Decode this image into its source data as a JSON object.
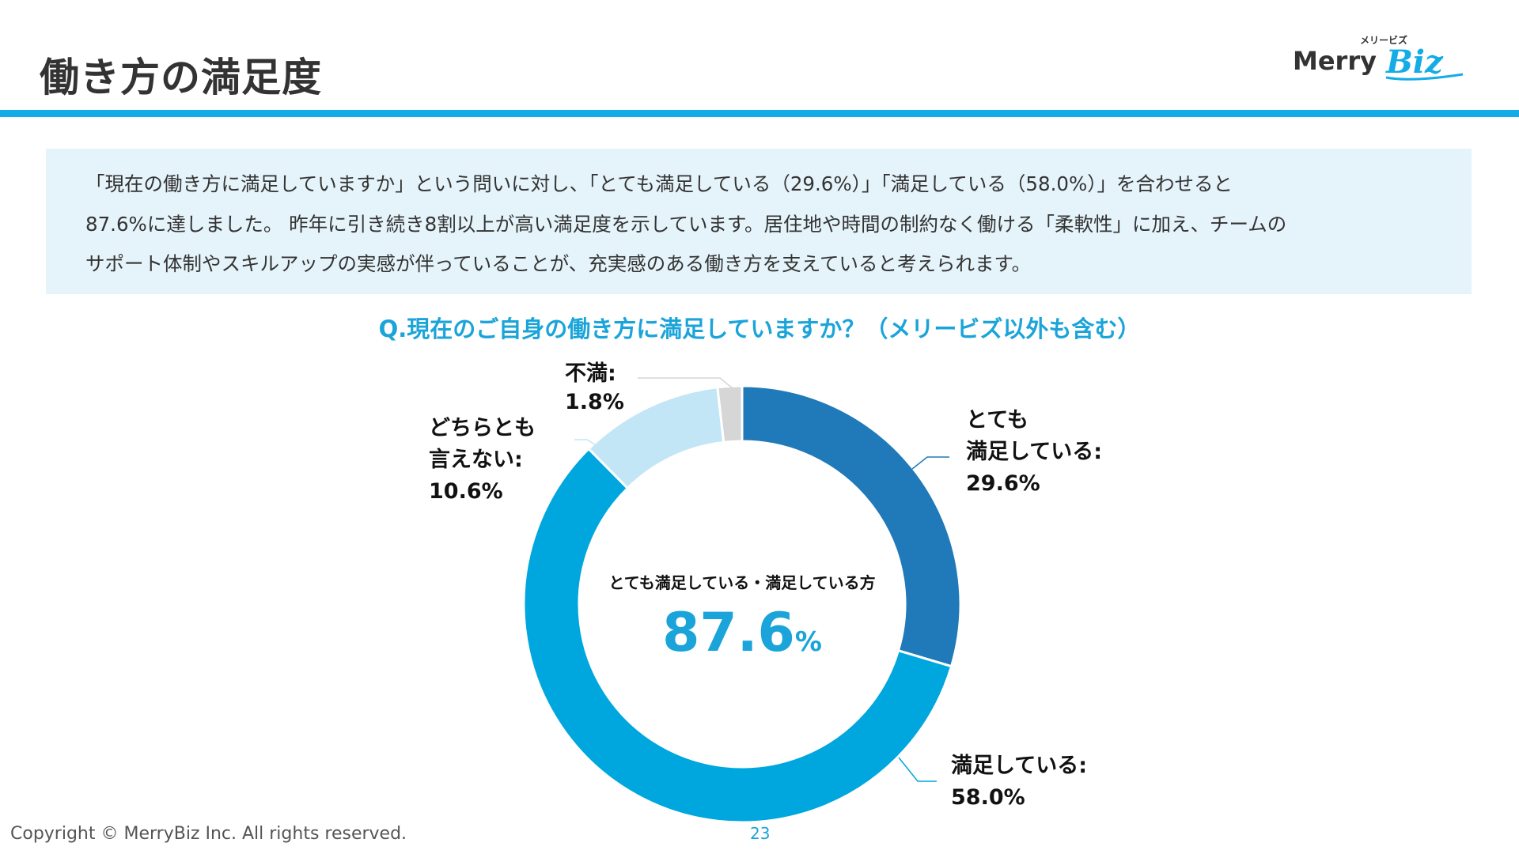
{
  "header": {
    "title": "働き方の満足度",
    "logo_kana": "メリービズ",
    "logo_main": "Merry",
    "logo_script": "Biz"
  },
  "summary": {
    "lines": [
      "「現在の働き方に満足していますか」という問いに対し、「とても満足している（29.6%）」「満足している（58.0%）」を合わせると",
      "87.6%に達しました。 昨年に引き続き8割以上が高い満足度を示しています。居住地や時間の制約なく働ける「柔軟性」に加え、チームの",
      "サポート体制やスキルアップの実感が伴っていることが、充実感のある働き方を支えていると考えられます。"
    ]
  },
  "chart_data": {
    "type": "pie",
    "subtype": "donut",
    "title": "Q.現在のご自身の働き方に満足していますか？（メリービズ以外も含む）",
    "slices": [
      {
        "label_lines": [
          "とても",
          "満足している:",
          "29.6%"
        ],
        "value": 29.6,
        "color": "#2079b8"
      },
      {
        "label_lines": [
          "満足している:",
          "58.0%"
        ],
        "value": 58.0,
        "color": "#00a7de"
      },
      {
        "label_lines": [
          "どちらとも",
          "言えない:",
          "10.6%"
        ],
        "value": 10.6,
        "color": "#c2e6f6"
      },
      {
        "label_lines": [
          "不満:",
          "1.8%"
        ],
        "value": 1.8,
        "color": "#d6d6d6"
      }
    ],
    "center_caption": "とても満足している・満足している方",
    "center_value": "87.6",
    "center_unit": "%"
  },
  "footer": {
    "copyright": "Copyright © MerryBiz Inc. All rights reserved.",
    "page": "23"
  },
  "colors": {
    "accent": "#13ace6",
    "summary_bg": "#e5f3fa",
    "question": "#1aa4d9",
    "center_value": "#1aa4d9"
  }
}
